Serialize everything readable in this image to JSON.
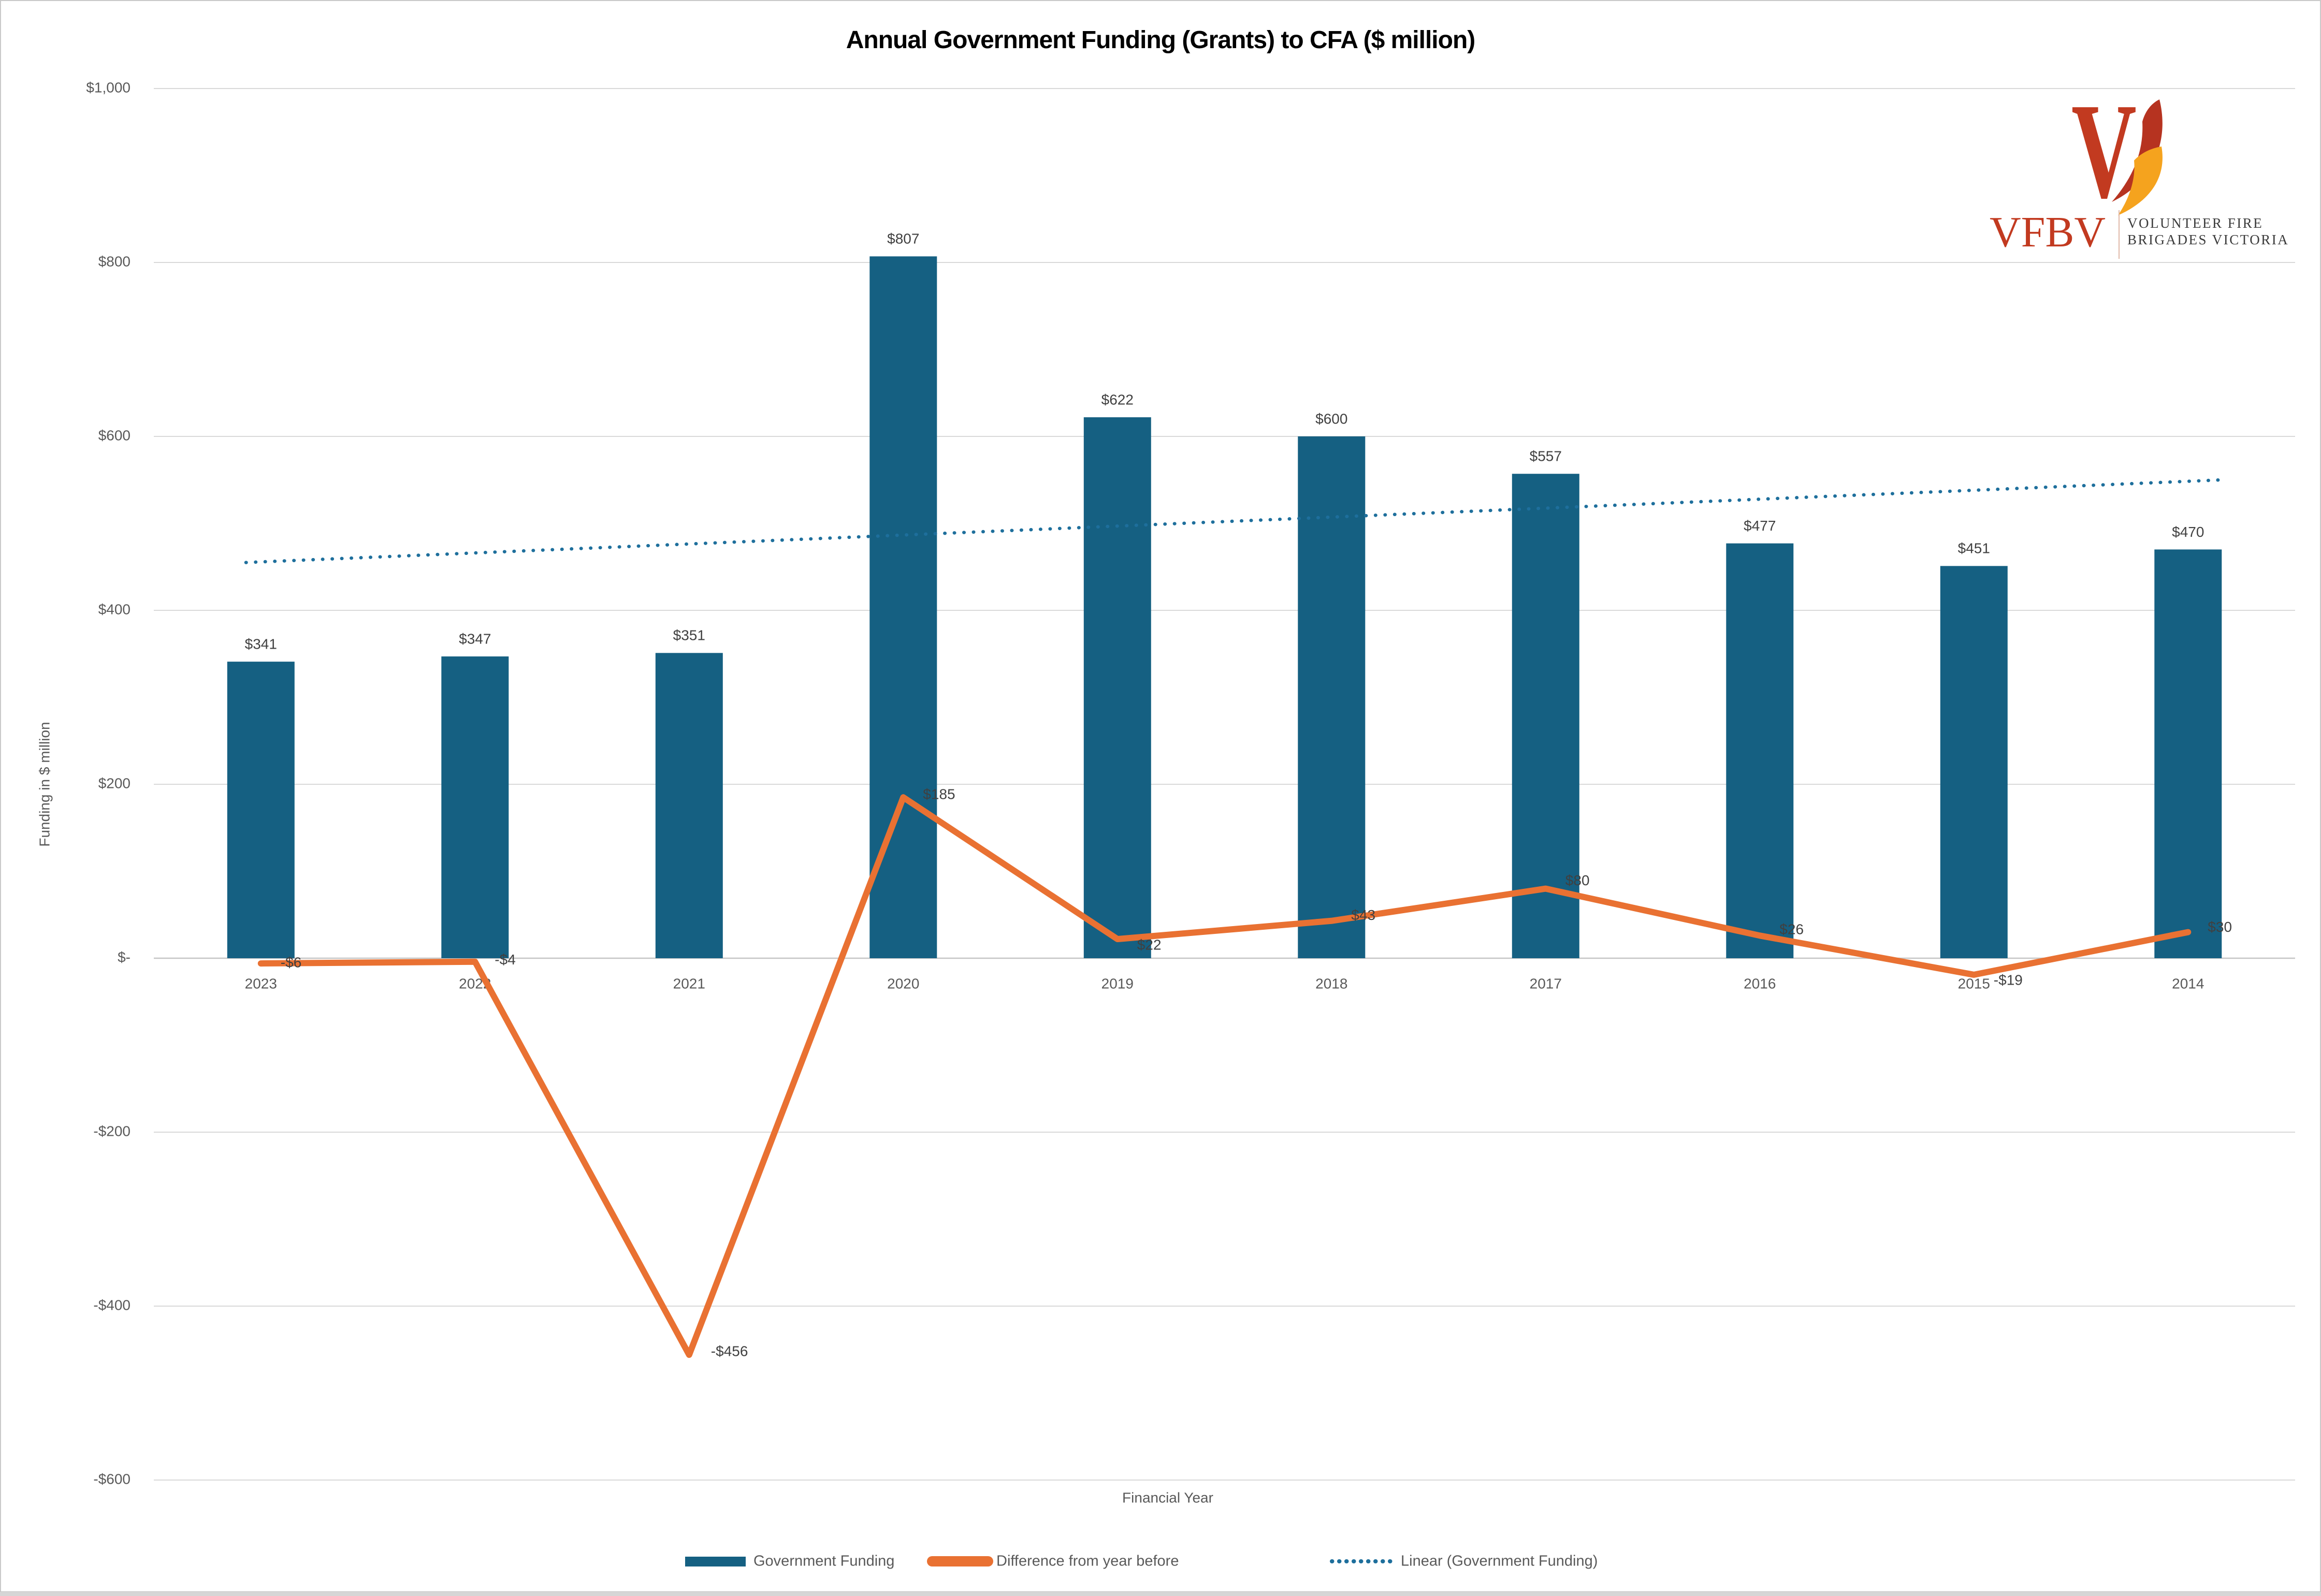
{
  "title": "Annual Government Funding (Grants) to CFA ($ million)",
  "logo": {
    "acronym": "VFBV",
    "name_line1": "VOLUNTEER FIRE",
    "name_line2": "BRIGADES VICTORIA",
    "red": "#C23A20",
    "flame_red": "#B63320",
    "flame_orange": "#F5A31E",
    "text_color": "#3b3b3b"
  },
  "chart_data": {
    "type": "bar",
    "title": "Annual Government Funding (Grants) to CFA ($ million)",
    "xlabel": "Financial Year",
    "ylabel": "Funding in $ million",
    "categories": [
      "2023",
      "2022",
      "2021",
      "2020",
      "2019",
      "2018",
      "2017",
      "2016",
      "2015",
      "2014"
    ],
    "ylim": [
      -600,
      1000
    ],
    "ytick_step": 200,
    "ytick_labels": [
      "$1,000",
      "$800",
      "$600",
      "$400",
      "$200",
      "$-",
      "-$200",
      "-$400",
      "-$600"
    ],
    "grid": true,
    "legend_position": "bottom",
    "series": [
      {
        "name": "Government Funding",
        "type": "bar",
        "color": "#156082",
        "values": [
          341,
          347,
          351,
          807,
          622,
          600,
          557,
          477,
          451,
          470
        ],
        "labels": [
          "$341",
          "$347",
          "$351",
          "$807",
          "$622",
          "$600",
          "$557",
          "$477",
          "$451",
          "$470"
        ]
      },
      {
        "name": "Difference from year before",
        "type": "line",
        "color": "#E97132",
        "values": [
          -6,
          -4,
          -456,
          185,
          22,
          43,
          80,
          26,
          -19,
          30
        ],
        "labels": [
          "-$6",
          "-$4",
          "-$456",
          "$185",
          "$22",
          "$43",
          "$80",
          "$26",
          "-$19",
          "$30"
        ],
        "label_dx": [
          38,
          38,
          42,
          38,
          38,
          38,
          38,
          38,
          38,
          38
        ],
        "label_dy": [
          0,
          -2,
          -5,
          -4,
          13,
          -9,
          -14,
          -10,
          12,
          -8
        ]
      },
      {
        "name": "Linear (Government Funding)",
        "type": "trendline",
        "color": "#1E6F9C",
        "start_value": 455,
        "end_value": 550
      }
    ],
    "text_colors": {
      "ticks": "#595959",
      "data_labels": "#404040",
      "axis_titles": "#595959"
    },
    "grid_color": "#D9D9D9",
    "zero_line_color": "#C6C6C6"
  }
}
